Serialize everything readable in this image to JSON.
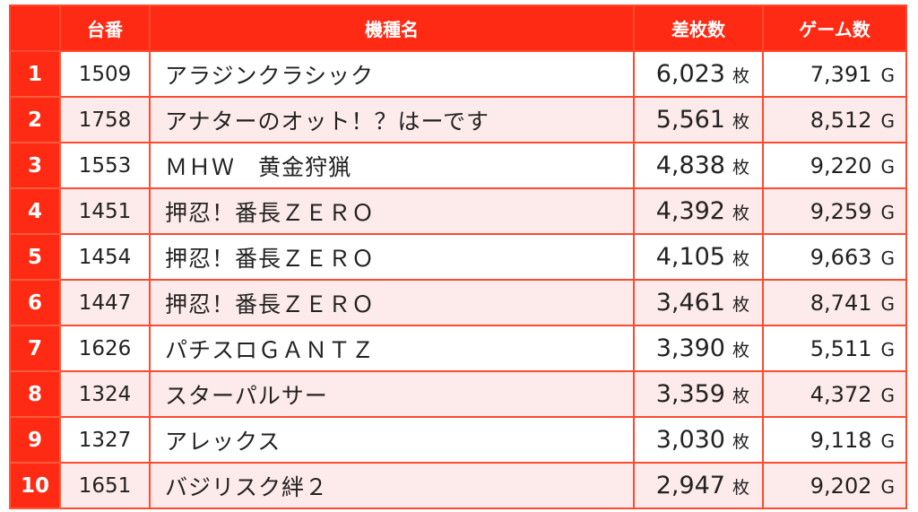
{
  "colors": {
    "header_bg": "#ff2a14",
    "border": "#ff4a30",
    "even_row_bg": "#fdeaea",
    "odd_row_bg": "#ffffff"
  },
  "headers": {
    "rank": "",
    "machine_no": "台番",
    "model_name": "機種名",
    "diff": "差枚数",
    "games": "ゲーム数"
  },
  "units": {
    "diff": "枚",
    "games": "G"
  },
  "rows": [
    {
      "rank": "1",
      "machine_no": "1509",
      "model_name": "アラジンクラシック",
      "diff": "6,023",
      "games": "7,391"
    },
    {
      "rank": "2",
      "machine_no": "1758",
      "model_name": "アナターのオット！？はーです",
      "diff": "5,561",
      "games": "8,512"
    },
    {
      "rank": "3",
      "machine_no": "1553",
      "model_name": "ＭＨＷ　黄金狩猟",
      "diff": "4,838",
      "games": "9,220"
    },
    {
      "rank": "4",
      "machine_no": "1451",
      "model_name": "押忍！番長ＺＥＲＯ",
      "diff": "4,392",
      "games": "9,259"
    },
    {
      "rank": "5",
      "machine_no": "1454",
      "model_name": "押忍！番長ＺＥＲＯ",
      "diff": "4,105",
      "games": "9,663"
    },
    {
      "rank": "6",
      "machine_no": "1447",
      "model_name": "押忍！番長ＺＥＲＯ",
      "diff": "3,461",
      "games": "8,741"
    },
    {
      "rank": "7",
      "machine_no": "1626",
      "model_name": "パチスロＧＡＮＴＺ",
      "diff": "3,390",
      "games": "5,511"
    },
    {
      "rank": "8",
      "machine_no": "1324",
      "model_name": "スターパルサー",
      "diff": "3,359",
      "games": "4,372"
    },
    {
      "rank": "9",
      "machine_no": "1327",
      "model_name": "アレックス",
      "diff": "3,030",
      "games": "9,118"
    },
    {
      "rank": "10",
      "machine_no": "1651",
      "model_name": "バジリスク絆２",
      "diff": "2,947",
      "games": "9,202"
    }
  ]
}
